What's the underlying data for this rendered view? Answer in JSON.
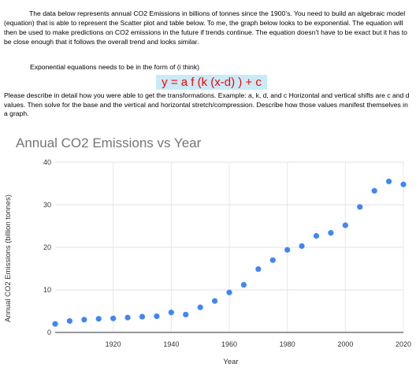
{
  "intro": "The data below represents annual CO2 Emissions in billions of tonnes since the 1900’s. You need to build an algebraic model (equation) that is able to represent the Scatter plot and table below. To me, the graph below looks to be exponential. The equation will then be used to make predictions on CO2 emissions in the future if trends continue. The equation doesn’t have to be exact but it has to be close enough that it follows the overall trend and looks similar.",
  "equation_label": "Exponential equations needs to be in the form of  (i think)",
  "equation": "y = a f (k (x-d) ) + c",
  "describe": "Please describe in detail how you were able to get the transformations. Example: a, k, d, and c Horizontal and vertical shifts are c and d values. Then solve for the base and the vertical and horizontal stretch/compression. Describe how those values manifest themselves in a graph.",
  "chart_data": {
    "type": "scatter",
    "title": "Annual CO2 Emissions vs Year",
    "xlabel": "Year",
    "ylabel": "Annual CO2 Emissions (billion tonnes)",
    "xlim": [
      1900,
      2020
    ],
    "ylim": [
      0,
      40
    ],
    "xticks": [
      1920,
      1940,
      1960,
      1980,
      2000,
      2020
    ],
    "yticks": [
      0,
      10,
      20,
      30,
      40
    ],
    "grid": true,
    "color": "#4285f4",
    "x": [
      1900,
      1905,
      1910,
      1915,
      1920,
      1925,
      1930,
      1935,
      1940,
      1945,
      1950,
      1955,
      1960,
      1965,
      1970,
      1975,
      1980,
      1985,
      1990,
      1995,
      2000,
      2005,
      2010,
      2015,
      2020
    ],
    "y": [
      2.0,
      2.7,
      3.0,
      3.2,
      3.3,
      3.5,
      3.7,
      3.8,
      4.7,
      4.2,
      5.9,
      7.4,
      9.4,
      11.2,
      14.9,
      17.0,
      19.4,
      20.3,
      22.7,
      23.4,
      25.2,
      29.5,
      33.3,
      35.5,
      34.8
    ]
  }
}
